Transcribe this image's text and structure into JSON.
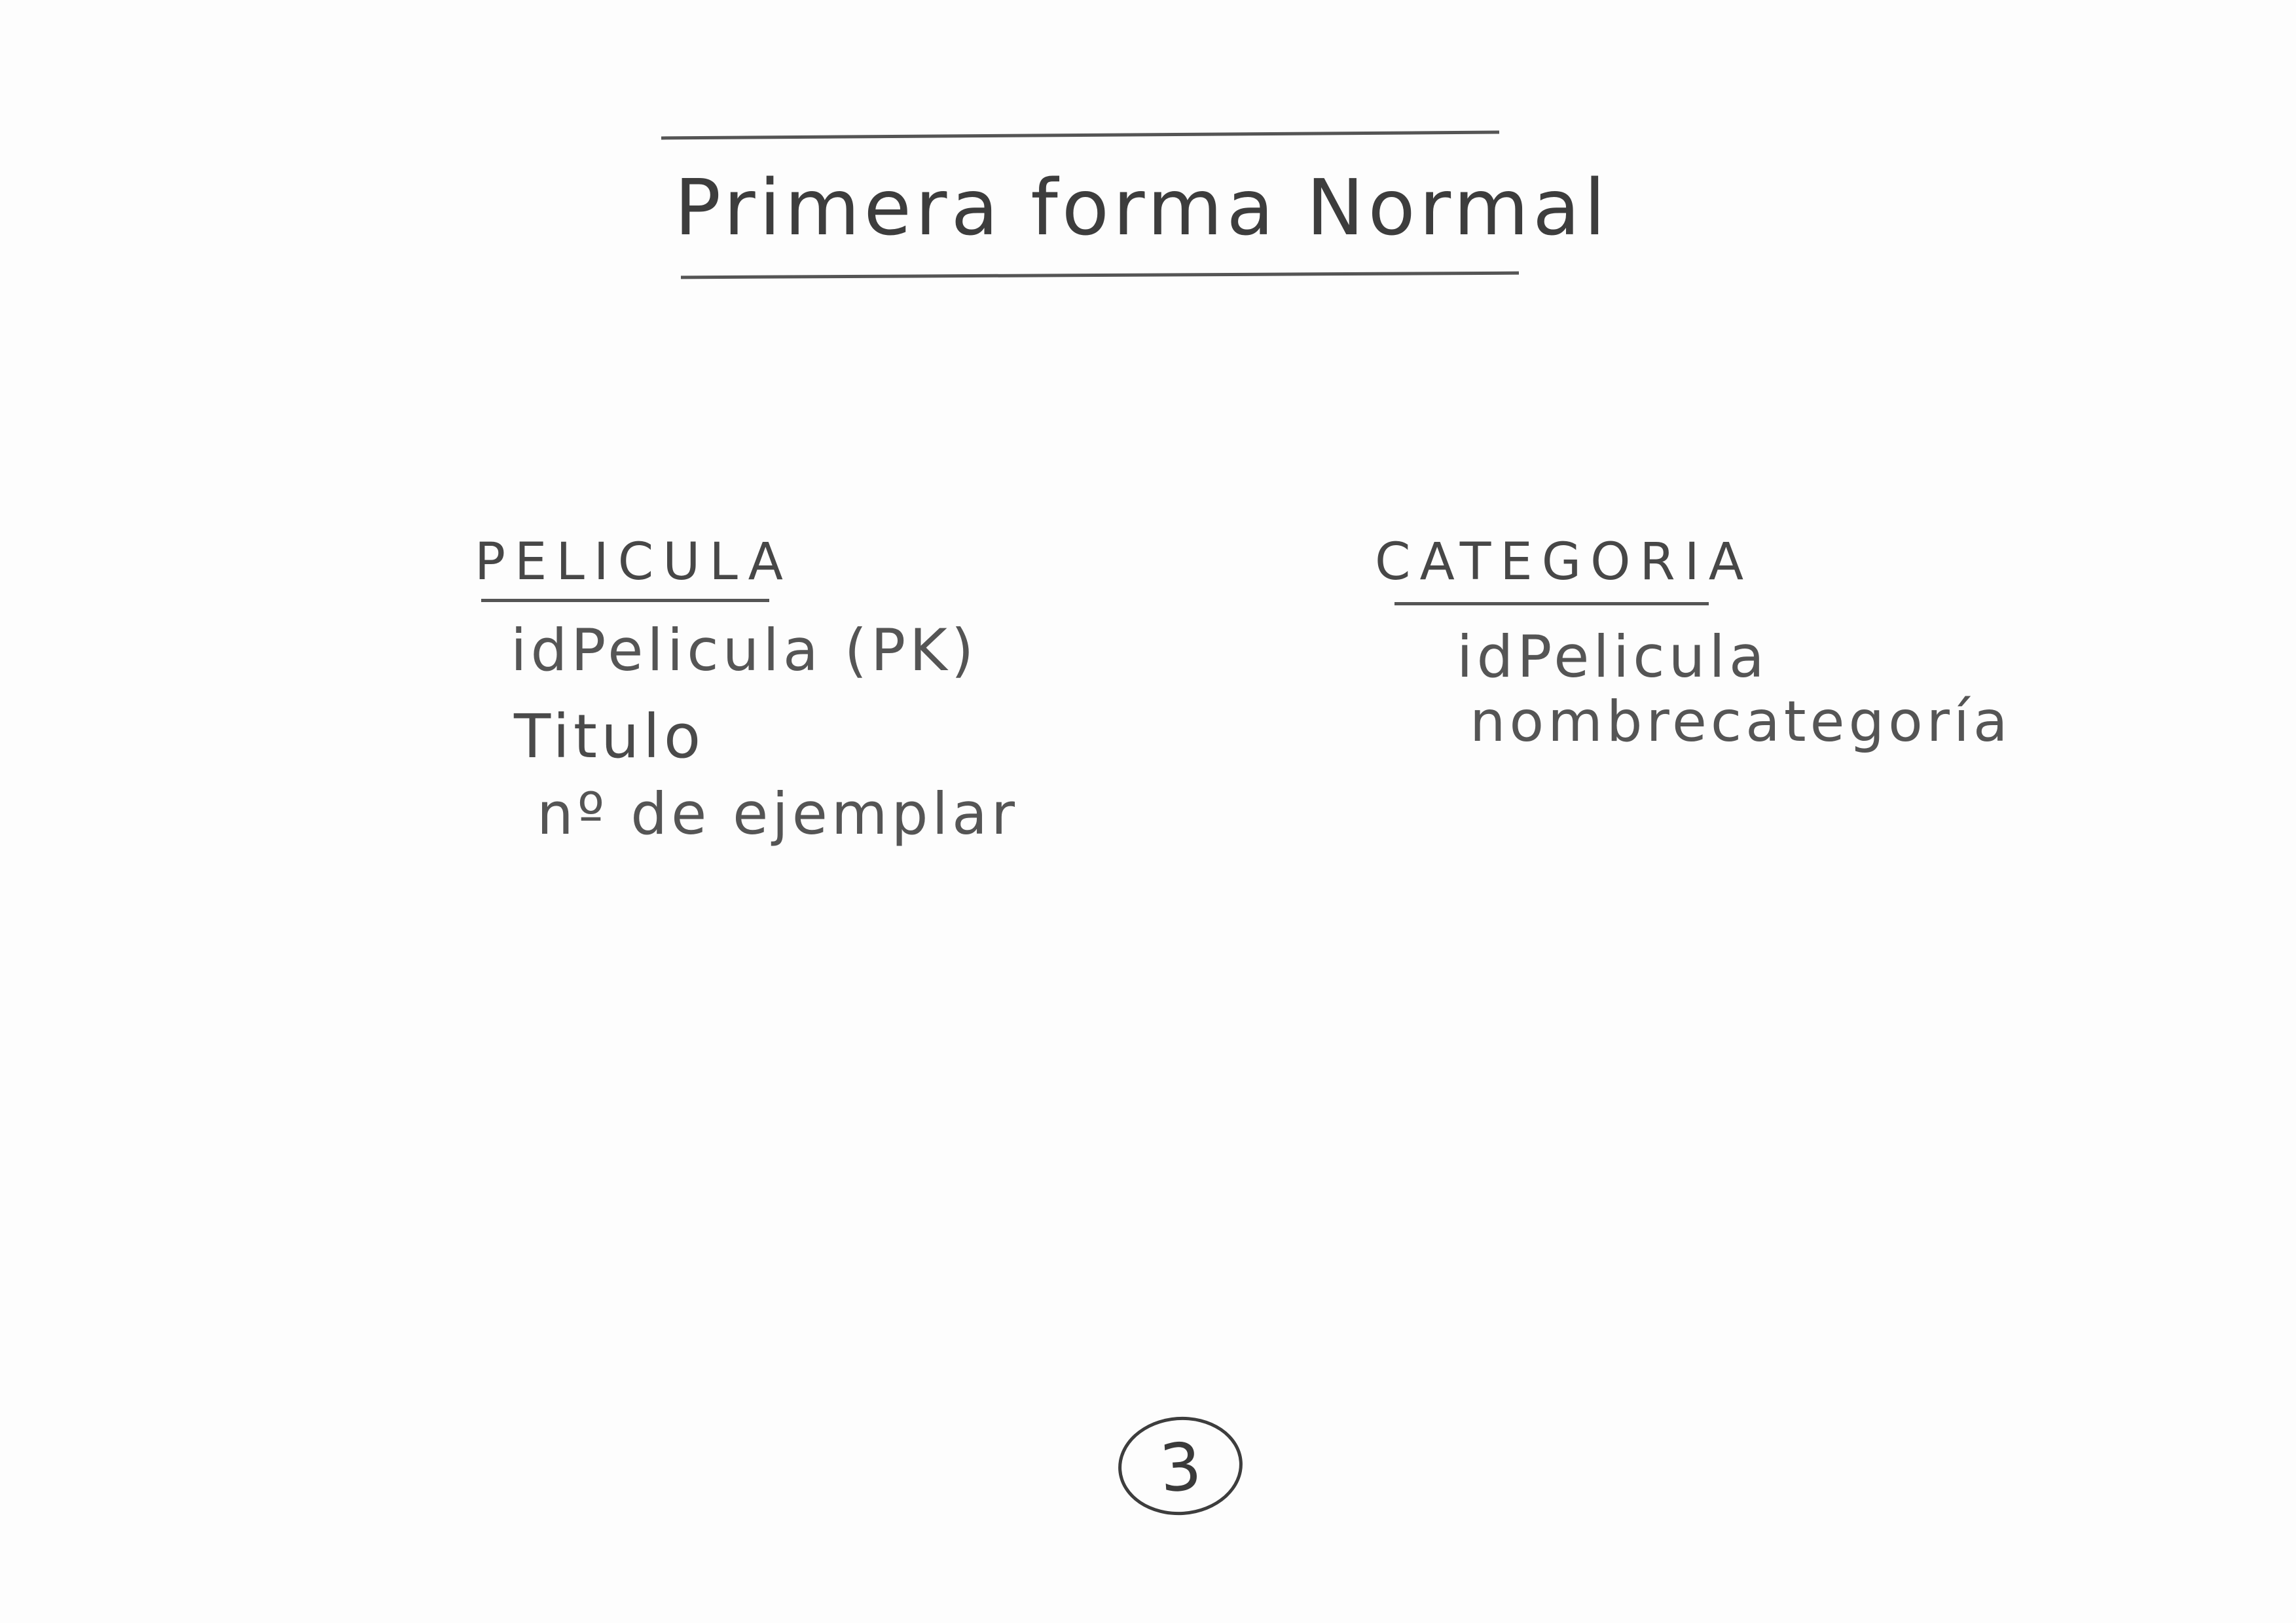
{
  "title": "Primera forma Normal",
  "tables": [
    {
      "name": "PELICULA",
      "fields": [
        "idPelicula (PK)",
        "Titulo",
        "nº de ejemplar"
      ]
    },
    {
      "name": "CATEGORIA",
      "fields": [
        "idPelicula",
        "nombrecategoría"
      ]
    }
  ],
  "page_number": "3"
}
